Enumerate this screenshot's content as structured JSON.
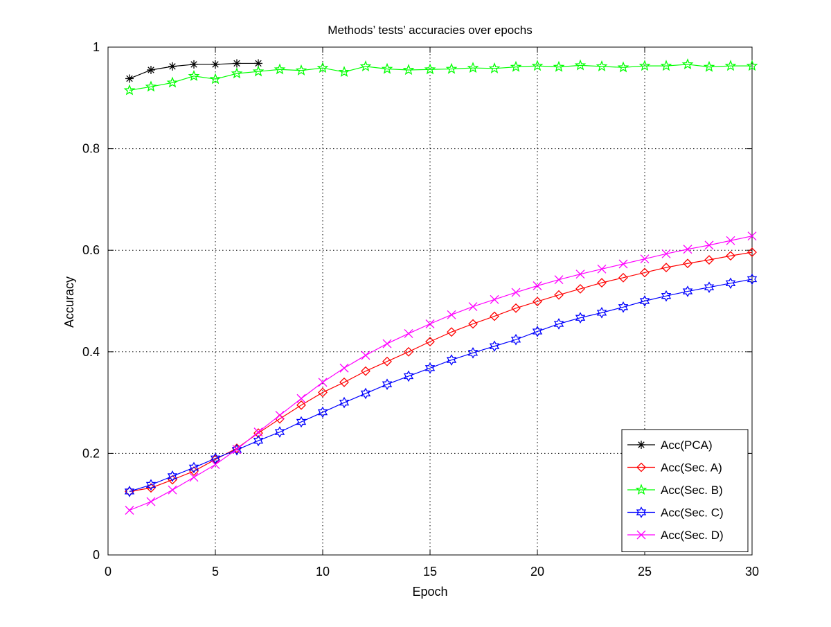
{
  "chart_data": {
    "type": "line",
    "title": "Methods’ tests’ accuracies over epochs",
    "xlabel": "Epoch",
    "ylabel": "Accuracy",
    "xlim": [
      0,
      30
    ],
    "ylim": [
      0,
      1
    ],
    "xticks": [
      0,
      5,
      10,
      15,
      20,
      25,
      30
    ],
    "yticks": [
      0,
      0.2,
      0.4,
      0.6,
      0.8,
      1
    ],
    "xtick_labels": [
      "0",
      "5",
      "10",
      "15",
      "20",
      "25",
      "30"
    ],
    "ytick_labels": [
      "0",
      "0.2",
      "0.4",
      "0.6",
      "0.8",
      "1"
    ],
    "grid": true,
    "legend_position": "bottom-right",
    "series": [
      {
        "name": "Acc(PCA)",
        "color": "#000000",
        "marker": "asterisk",
        "x": [
          1,
          2,
          3,
          4,
          5,
          6,
          7
        ],
        "values": [
          0.938,
          0.955,
          0.962,
          0.966,
          0.966,
          0.968,
          0.968
        ]
      },
      {
        "name": "Acc(Sec. A)",
        "color": "#ff0000",
        "marker": "diamond",
        "x": [
          1,
          2,
          3,
          4,
          5,
          6,
          7,
          8,
          9,
          10,
          11,
          12,
          13,
          14,
          15,
          16,
          17,
          18,
          19,
          20,
          21,
          22,
          23,
          24,
          25,
          26,
          27,
          28,
          29,
          30
        ],
        "values": [
          0.125,
          0.132,
          0.148,
          0.165,
          0.188,
          0.21,
          0.24,
          0.268,
          0.295,
          0.32,
          0.34,
          0.362,
          0.381,
          0.4,
          0.42,
          0.439,
          0.455,
          0.47,
          0.486,
          0.499,
          0.512,
          0.524,
          0.536,
          0.546,
          0.556,
          0.566,
          0.574,
          0.581,
          0.589,
          0.596
        ]
      },
      {
        "name": "Acc(Sec. B)",
        "color": "#00ff00",
        "marker": "star",
        "x": [
          1,
          2,
          3,
          4,
          5,
          6,
          7,
          8,
          9,
          10,
          11,
          12,
          13,
          14,
          15,
          16,
          17,
          18,
          19,
          20,
          21,
          22,
          23,
          24,
          25,
          26,
          27,
          28,
          29,
          30
        ],
        "values": [
          0.915,
          0.922,
          0.93,
          0.943,
          0.937,
          0.948,
          0.952,
          0.956,
          0.954,
          0.959,
          0.951,
          0.962,
          0.957,
          0.955,
          0.956,
          0.957,
          0.959,
          0.958,
          0.961,
          0.963,
          0.961,
          0.964,
          0.962,
          0.96,
          0.963,
          0.963,
          0.966,
          0.961,
          0.963,
          0.963
        ]
      },
      {
        "name": "Acc(Sec. C)",
        "color": "#0000ff",
        "marker": "hexagram",
        "x": [
          1,
          2,
          3,
          4,
          5,
          6,
          7,
          8,
          9,
          10,
          11,
          12,
          13,
          14,
          15,
          16,
          17,
          18,
          19,
          20,
          21,
          22,
          23,
          24,
          25,
          26,
          27,
          28,
          29,
          30
        ],
        "values": [
          0.125,
          0.138,
          0.155,
          0.172,
          0.19,
          0.207,
          0.225,
          0.242,
          0.262,
          0.281,
          0.3,
          0.318,
          0.336,
          0.352,
          0.368,
          0.384,
          0.398,
          0.411,
          0.424,
          0.44,
          0.455,
          0.467,
          0.477,
          0.488,
          0.5,
          0.51,
          0.519,
          0.527,
          0.535,
          0.543
        ]
      },
      {
        "name": "Acc(Sec. D)",
        "color": "#ff00ff",
        "marker": "x",
        "x": [
          1,
          2,
          3,
          4,
          5,
          6,
          7,
          8,
          9,
          10,
          11,
          12,
          13,
          14,
          15,
          16,
          17,
          18,
          19,
          20,
          21,
          22,
          23,
          24,
          25,
          26,
          27,
          28,
          29,
          30
        ],
        "values": [
          0.088,
          0.105,
          0.128,
          0.153,
          0.178,
          0.208,
          0.242,
          0.275,
          0.308,
          0.34,
          0.368,
          0.393,
          0.416,
          0.436,
          0.455,
          0.473,
          0.489,
          0.503,
          0.517,
          0.53,
          0.542,
          0.553,
          0.563,
          0.573,
          0.583,
          0.593,
          0.602,
          0.61,
          0.619,
          0.628
        ]
      }
    ]
  }
}
